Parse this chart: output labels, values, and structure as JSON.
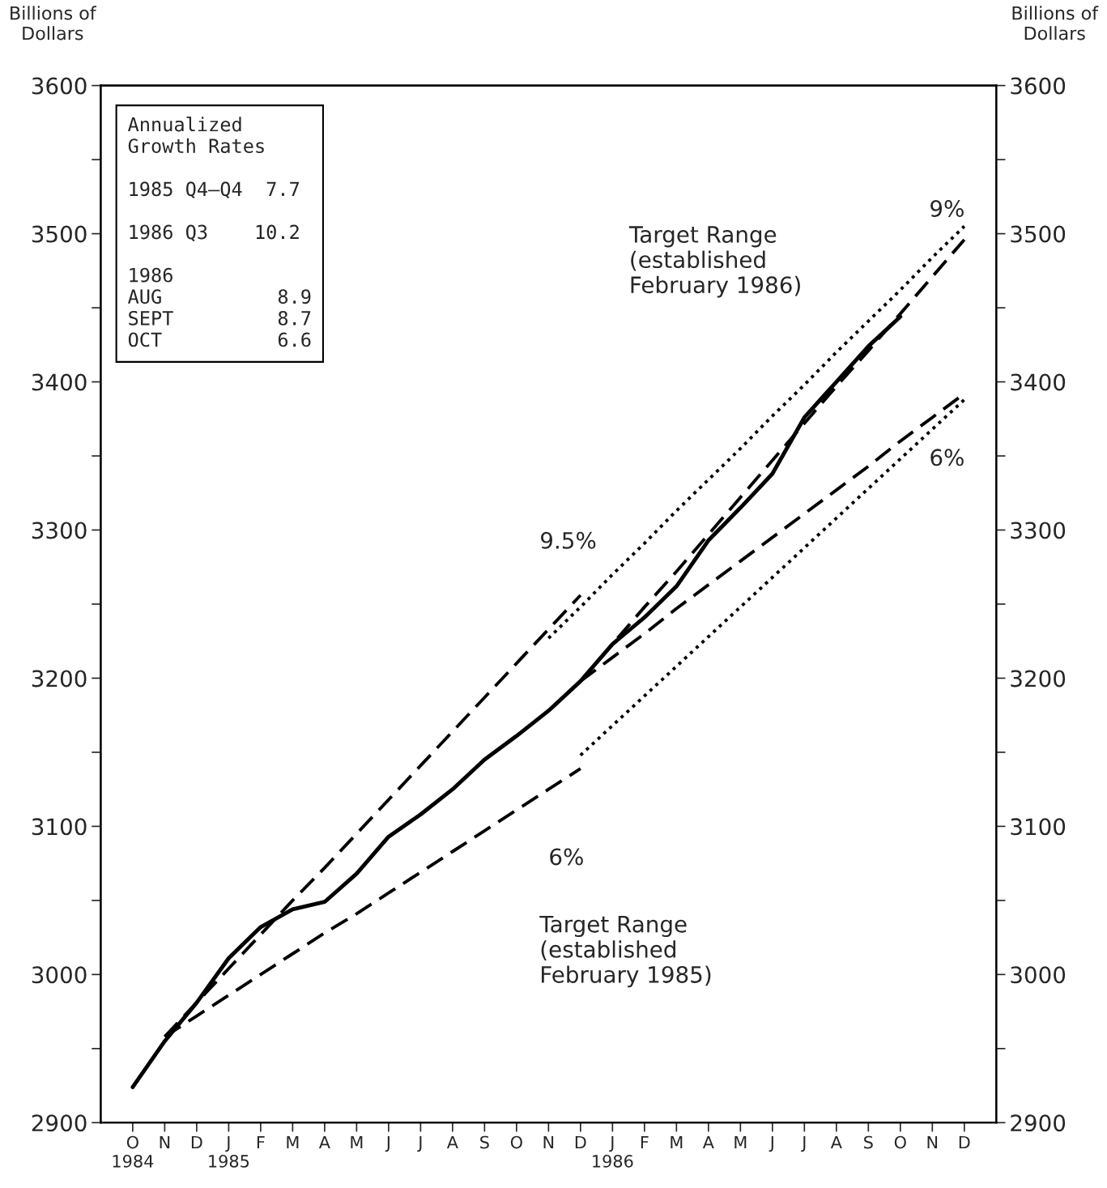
{
  "chart_data": {
    "type": "line",
    "ylabel": "Billions of\nDollars",
    "y2label": "Billions of\nDollars",
    "categories": [
      "O\n1984",
      "N",
      "D",
      "J\n1985",
      "F",
      "M",
      "A",
      "M",
      "J",
      "J",
      "A",
      "S",
      "O",
      "N",
      "D",
      "J\n1986",
      "F",
      "M",
      "A",
      "M",
      "J",
      "J",
      "A",
      "S",
      "O",
      "N",
      "D"
    ],
    "ylim": [
      2900,
      3600
    ],
    "yticks": [
      2900,
      {
        "value": 2950,
        "label": null
      },
      3000,
      {
        "value": 3050,
        "label": null
      },
      3100,
      {
        "value": 3150,
        "label": null
      },
      3200,
      {
        "value": 3250,
        "label": null
      },
      3300,
      {
        "value": 3350,
        "label": null
      },
      3400,
      {
        "value": 3450,
        "label": null
      },
      3500,
      {
        "value": 3550,
        "label": null
      },
      3600
    ],
    "y2lim": [
      2900,
      3600
    ],
    "y2ticks": [
      2900,
      {
        "value": 2950,
        "label": null
      },
      3000,
      {
        "value": 3050,
        "label": null
      },
      3100,
      {
        "value": 3150,
        "label": null
      },
      3200,
      {
        "value": 3250,
        "label": null
      },
      3300,
      {
        "value": 3350,
        "label": null
      },
      3400,
      {
        "value": 3450,
        "label": null
      },
      3500,
      {
        "value": 3550,
        "label": null
      },
      3600
    ],
    "grid": false,
    "series": [
      {
        "color": "#000000",
        "line_style": "solid",
        "values": [
          2924,
          2955,
          2981,
          3011,
          3032,
          3044,
          3049,
          3068,
          3093,
          3108,
          3125,
          3145,
          3161,
          3178,
          3198,
          3223,
          3241,
          3262,
          3293,
          3315,
          3338,
          3376,
          3400,
          3424,
          3444,
          null,
          null
        ]
      },
      {
        "color": "#000000",
        "line_style": "dashed",
        "values": [
          null,
          2958,
          2981,
          3004,
          3027,
          3050,
          3072,
          3095,
          3118,
          3141,
          3164,
          3187,
          3210,
          3233,
          3256,
          null,
          null,
          null,
          null,
          null,
          null,
          null,
          null,
          null,
          null,
          null,
          null
        ]
      },
      {
        "color": "#000000",
        "line_style": "dashed",
        "values": [
          null,
          2958,
          2972,
          2986,
          3000,
          3014,
          3028,
          3041,
          3055,
          3069,
          3083,
          3097,
          3111,
          3125,
          3139,
          null,
          null,
          null,
          null,
          null,
          null,
          null,
          null,
          null,
          null,
          null,
          null
        ]
      },
      {
        "color": "#000000",
        "line_style": "dashed",
        "values": [
          null,
          null,
          null,
          null,
          null,
          null,
          null,
          null,
          null,
          null,
          null,
          null,
          null,
          null,
          3198,
          3223,
          3248,
          3272,
          3297,
          3322,
          3347,
          3372,
          3397,
          3421,
          3446,
          3471,
          3496
        ]
      },
      {
        "color": "#000000",
        "line_style": "dashed",
        "values": [
          null,
          null,
          null,
          null,
          null,
          null,
          null,
          null,
          null,
          null,
          null,
          null,
          null,
          null,
          3198,
          3214,
          3230,
          3247,
          3263,
          3279,
          3295,
          3311,
          3327,
          3343,
          3360,
          3376,
          3392
        ]
      },
      {
        "color": "#000000",
        "line_style": "dotted",
        "values": [
          null,
          null,
          null,
          null,
          null,
          null,
          null,
          null,
          null,
          null,
          null,
          null,
          null,
          3227,
          3248,
          3270,
          3291,
          3313,
          3334,
          3355,
          3377,
          3398,
          3420,
          3441,
          3462,
          3484,
          3505
        ]
      },
      {
        "color": "#000000",
        "line_style": "dotted",
        "values": [
          null,
          null,
          null,
          null,
          null,
          null,
          null,
          null,
          null,
          null,
          null,
          null,
          null,
          null,
          3148,
          3168,
          3188,
          3208,
          3228,
          3248,
          3268,
          3288,
          3308,
          3328,
          3348,
          3368,
          3388
        ]
      }
    ],
    "annotations": [
      "Annualized\nGrowth Rates\n\n1985 Q4–Q4  7.7\n\n1986 Q3    10.2\n\n1986\nAUG          8.9\nSEPT         8.7\nOCT          6.6",
      "9.5%",
      "6%",
      "Target Range\n(established\nFebruary 1985)",
      "9%",
      "6%",
      "Target Range\n(established\nFebruary 1986)"
    ]
  }
}
